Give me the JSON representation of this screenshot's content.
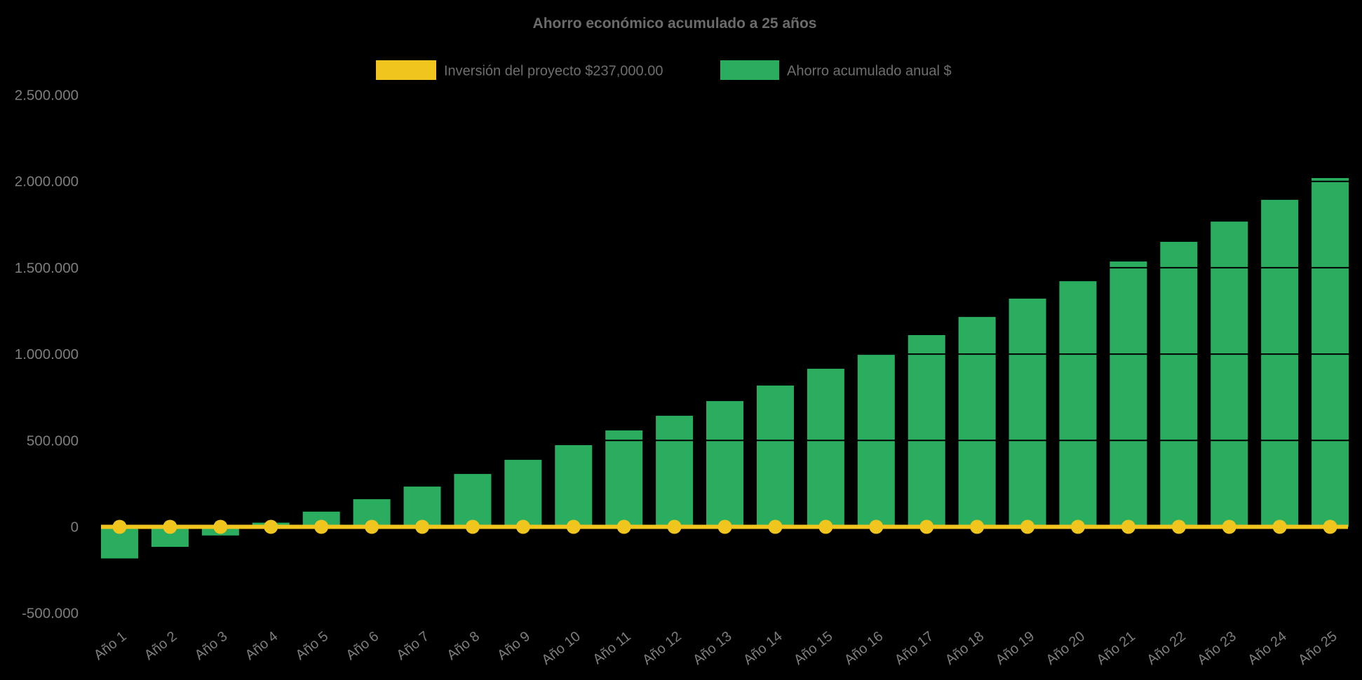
{
  "chart_data": {
    "type": "bar",
    "title": "Ahorro económico acumulado a 25 años",
    "background_color": "#000000",
    "legend_position": "top-center",
    "grid": "hidden (black hairline ticks only visible where they cross bars)",
    "categories": [
      "Año 1",
      "Año 2",
      "Año 3",
      "Año 4",
      "Año 5",
      "Año 6",
      "Año 7",
      "Año 8",
      "Año 9",
      "Año 10",
      "Año 11",
      "Año 12",
      "Año 13",
      "Año 14",
      "Año 15",
      "Año 16",
      "Año 17",
      "Año 18",
      "Año 19",
      "Año 20",
      "Año 21",
      "Año 22",
      "Año 23",
      "Año 24",
      "Año 25"
    ],
    "series": [
      {
        "name": "Inversión del proyecto $237,000.00",
        "type": "line",
        "color": "#EFC51E",
        "marker": "circle",
        "values_constant": 0
      },
      {
        "name": "Ahorro acumulado anual $",
        "type": "bar",
        "color": "#2BAD60",
        "values": [
          -183000,
          -116000,
          -50000,
          24000,
          88000,
          160000,
          233000,
          306000,
          388000,
          473000,
          558000,
          643000,
          728000,
          818000,
          915000,
          1004000,
          1110000,
          1215000,
          1321000,
          1422000,
          1536000,
          1650000,
          1767000,
          1893000,
          2019000
        ]
      }
    ],
    "yticks": [
      {
        "label": "2.500.000",
        "value": 2500000
      },
      {
        "label": "2.000.000",
        "value": 2000000
      },
      {
        "label": "1.500.000",
        "value": 1500000
      },
      {
        "label": "1.000.000",
        "value": 1000000
      },
      {
        "label": "500.000",
        "value": 500000
      },
      {
        "label": "0",
        "value": 0
      },
      {
        "label": "-500.000",
        "value": -500000
      }
    ],
    "ylim": [
      -500000,
      2500000
    ],
    "xlabel": "",
    "ylabel": "",
    "text_colors": {
      "title": "#6B6B6B",
      "legend": "#6E6E6E",
      "axis_labels": "#7E7E7E"
    }
  }
}
